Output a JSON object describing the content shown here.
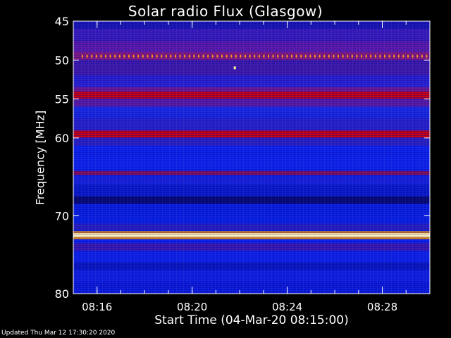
{
  "chart_data": {
    "type": "heatmap",
    "title": "Solar radio Flux (Glasgow)",
    "xlabel": "Start Time (04-Mar-20 08:15:00)",
    "ylabel": "Frequency [MHz]",
    "yticks": [
      "45",
      "50",
      "55",
      "60",
      "70",
      "80"
    ],
    "xticks": [
      "08:16",
      "08:20",
      "08:24",
      "08:28"
    ],
    "ylim": [
      45,
      80
    ],
    "xlim": [
      "08:15:00",
      "08:30:00"
    ],
    "emission_bands": [
      {
        "freq_mhz": 49.5,
        "intensity": "bursty"
      },
      {
        "freq_mhz": 54.5,
        "intensity": "strong"
      },
      {
        "freq_mhz": 59.5,
        "intensity": "strong"
      },
      {
        "freq_mhz": 64.5,
        "intensity": "medium"
      },
      {
        "freq_mhz": 72.5,
        "intensity": "very strong"
      }
    ],
    "colors": {
      "background": "#000000",
      "low": "#0b1ad8",
      "mid": "#5a1a9a",
      "high": "#c00000",
      "peak": "#fff5c0"
    },
    "footer": "Updated Thu Mar 12 17:30:20 2020"
  }
}
